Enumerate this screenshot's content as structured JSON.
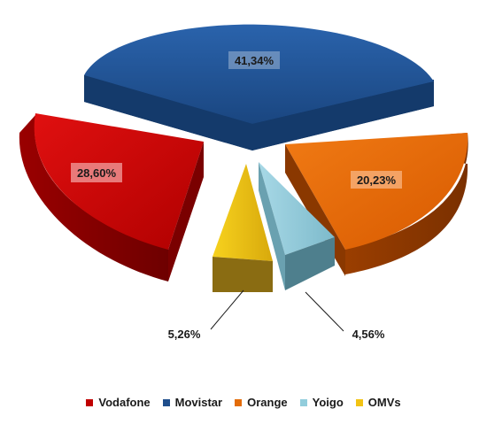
{
  "chart_data": {
    "type": "pie",
    "variant": "3d-exploded",
    "title": "",
    "legend_position": "bottom",
    "slices": [
      {
        "name": "Vodafone",
        "value": 28.6,
        "label": "28,60%",
        "color": "#c00000"
      },
      {
        "name": "Movistar",
        "value": 41.34,
        "label": "41,34%",
        "color": "#1f4e8c"
      },
      {
        "name": "Orange",
        "value": 20.23,
        "label": "20,23%",
        "color": "#e36c09"
      },
      {
        "name": "Yoigo",
        "value": 4.56,
        "label": "4,56%",
        "color": "#92cddc"
      },
      {
        "name": "OMVs",
        "value": 5.26,
        "label": "5,26%",
        "color": "#f2c314"
      }
    ]
  }
}
